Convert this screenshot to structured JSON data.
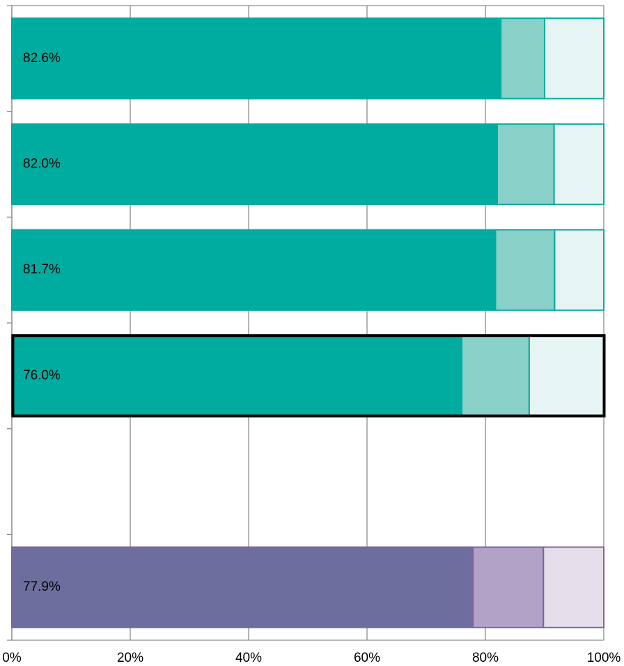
{
  "chart_data": {
    "type": "stacked-barh",
    "categories": [
      null,
      null,
      null,
      null,
      null,
      null
    ],
    "series": [
      {
        "colors": [
          "#00ac9f",
          "#00ac9f",
          "#00ac9f",
          "#00ac9f",
          "#00ac9f",
          "#6e6e9e"
        ],
        "values": [
          82.6,
          82.0,
          81.7,
          76.0,
          null,
          77.9
        ],
        "value_labels": [
          "82.6%",
          "82.0%",
          "81.7%",
          "76.0%",
          null,
          "77.9%"
        ]
      },
      {
        "colors": [
          "#88d0c8",
          "#88d0c8",
          "#88d0c8",
          "#88d0c8",
          "#88d0c8",
          "#b2a2c7"
        ],
        "values": [
          7.4,
          9.6,
          10.0,
          11.4,
          null,
          11.9
        ]
      },
      {
        "colors": [
          "#e6f4f3",
          "#e6f4f3",
          "#e6f4f3",
          "#e6f4f3",
          "#e6f4f3",
          "#e5dfec"
        ],
        "values": [
          10.0,
          8.4,
          8.3,
          12.6,
          null,
          10.2
        ]
      }
    ],
    "edge_colors": [
      "#00ac9f",
      "#00ac9f",
      "#00ac9f",
      "#00ac9f",
      "#00ac9f",
      "#7e649e"
    ],
    "highlight": 3,
    "xlim": [
      0,
      100
    ],
    "xticks": [
      {
        "value": 0,
        "label": "0%"
      },
      {
        "value": 20,
        "label": "20%"
      },
      {
        "value": 40,
        "label": "40%"
      },
      {
        "value": 60,
        "label": "60%"
      },
      {
        "value": 80,
        "label": "80%"
      },
      {
        "value": 100,
        "label": "100%"
      }
    ],
    "grid": true
  }
}
